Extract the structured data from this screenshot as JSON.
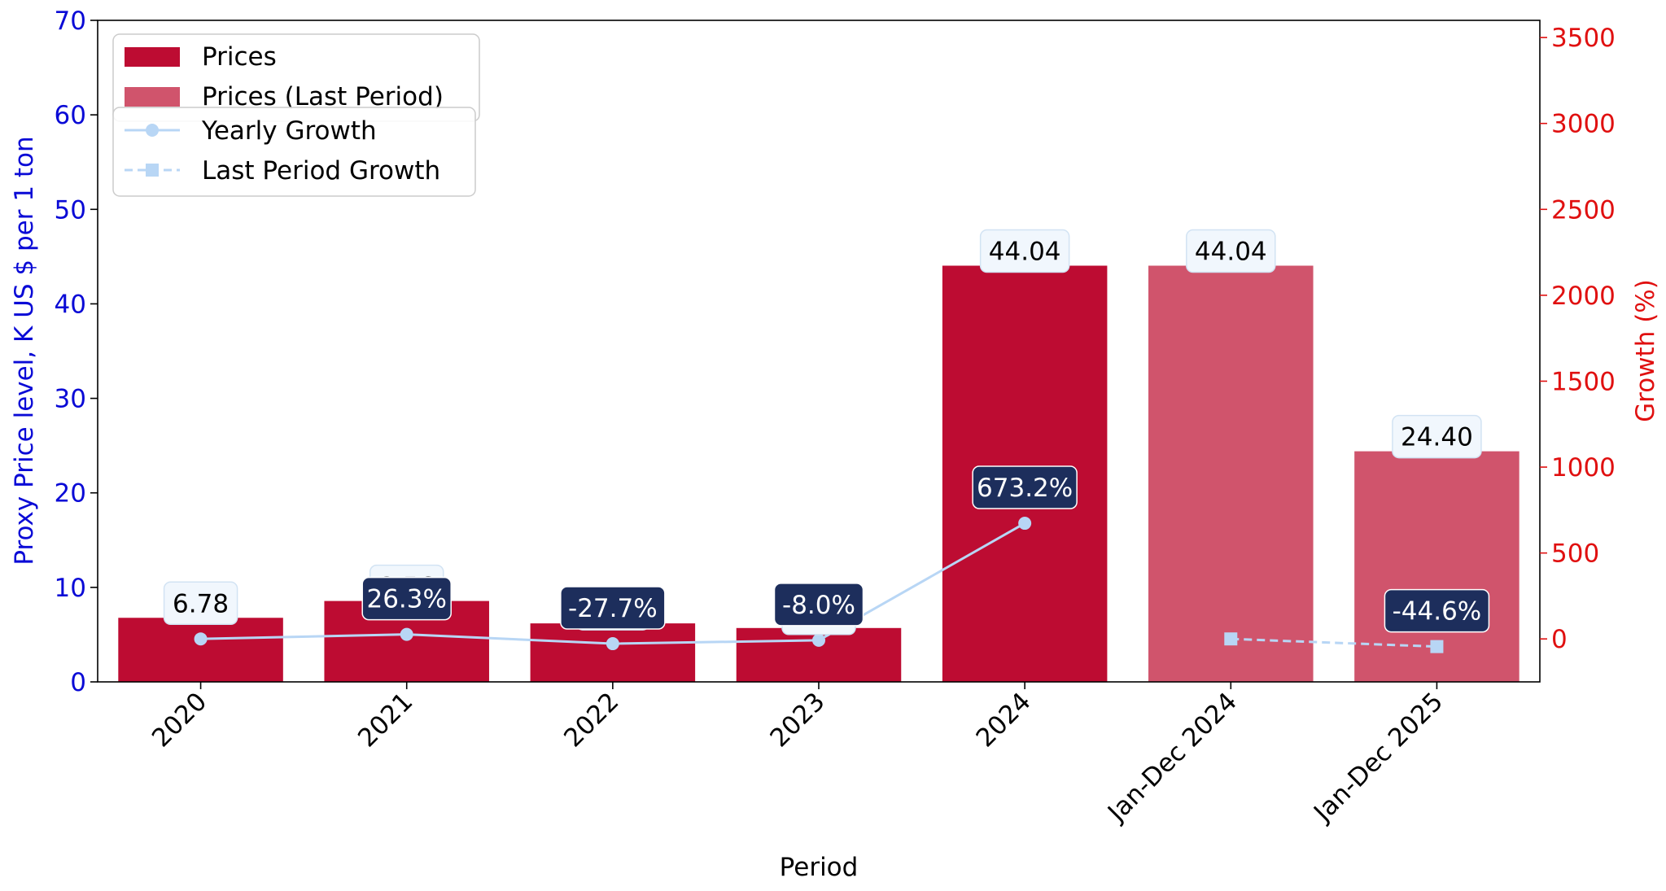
{
  "chart_data": {
    "type": "bar",
    "xlabel": "Period",
    "ylabel": "Proxy Price level, K US $ per 1 ton",
    "y2label": "Growth (%)",
    "categories": [
      "2020",
      "2021",
      "2022",
      "2023",
      "2024",
      "Jan-Dec 2024",
      "Jan-Dec 2025"
    ],
    "ylim": [
      0,
      70
    ],
    "y2lim": [
      -250,
      3600
    ],
    "yticks": [
      "0",
      "10",
      "20",
      "30",
      "40",
      "50",
      "60",
      "70"
    ],
    "y2ticks": [
      "0",
      "500",
      "1000",
      "1500",
      "2000",
      "2500",
      "3000",
      "3500"
    ],
    "series": [
      {
        "name": "Prices",
        "kind": "bar",
        "color": "#bd0c32",
        "values": [
          6.78,
          8.56,
          6.19,
          5.7,
          44.04,
          null,
          null
        ],
        "labels": [
          "6.78",
          "8.56",
          "6.19",
          "5.70",
          "44.04",
          null,
          null
        ]
      },
      {
        "name": "Prices (Last Period)",
        "kind": "bar",
        "color": "#d0546c",
        "values": [
          null,
          null,
          null,
          null,
          null,
          44.04,
          24.4
        ],
        "labels": [
          null,
          null,
          null,
          null,
          null,
          "44.04",
          "24.40"
        ]
      },
      {
        "name": "Yearly Growth",
        "kind": "line",
        "axis": "right",
        "color": "#b8d6f5",
        "values": [
          0,
          26.3,
          -27.7,
          -8.0,
          673.2,
          null,
          null
        ],
        "labels": [
          null,
          "26.3%",
          "-27.7%",
          "-8.0%",
          "673.2%",
          null,
          null
        ]
      },
      {
        "name": "Last Period Growth",
        "kind": "line-dashed",
        "axis": "right",
        "color": "#b8d6f5",
        "values": [
          null,
          null,
          null,
          null,
          null,
          0,
          -44.6
        ],
        "labels": [
          null,
          null,
          null,
          null,
          null,
          null,
          "-44.6%"
        ]
      }
    ],
    "colors": {
      "left_axis": "#0a0ad6",
      "right_axis": "#e01010",
      "growth_label_bg": "#1d2e5c",
      "price_label_bg": "#f1f7fd"
    },
    "legend": "top-left",
    "grid": false
  }
}
